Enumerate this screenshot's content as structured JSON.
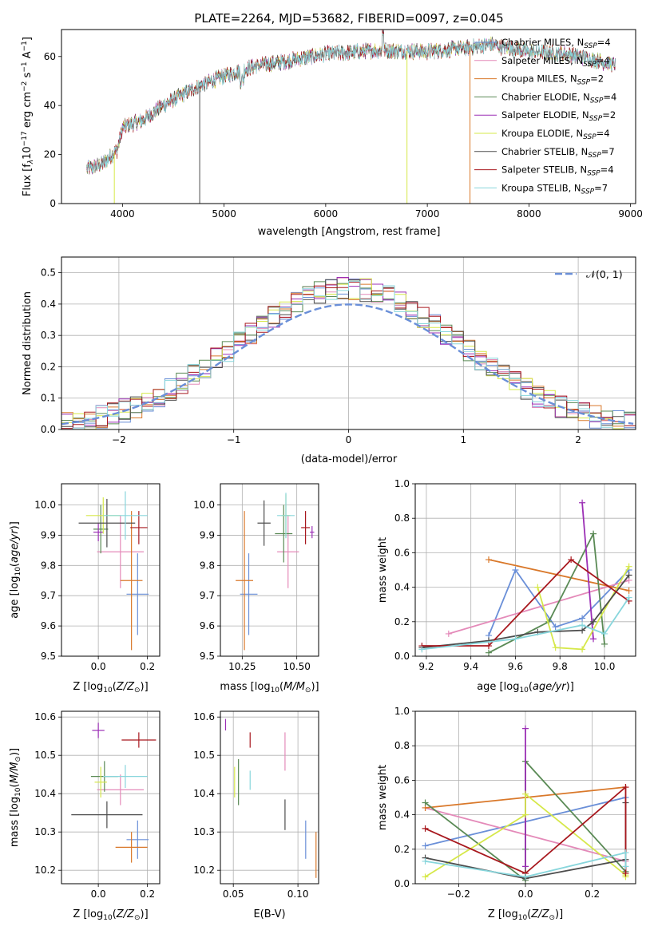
{
  "figure_title": "PLATE=2264, MJD=53682, FIBERID=0097, z=0.045",
  "colors": {
    "Chabrier MILES": "#6a8fd8",
    "Salpeter MILES": "#e48ab9",
    "Kroupa MILES": "#d9782a",
    "Chabrier ELODIE": "#5a8a55",
    "Salpeter ELODIE": "#9b2fb5",
    "Kroupa ELODIE": "#d6e84a",
    "Chabrier STELIB": "#4d4d4d",
    "Salpeter STELIB": "#a8181e",
    "Kroupa STELIB": "#88d6dc"
  },
  "legend_spectrum": [
    {
      "name": "Chabrier MILES",
      "suffix": "4"
    },
    {
      "name": "Salpeter MILES",
      "suffix": "4"
    },
    {
      "name": "Kroupa MILES",
      "suffix": "2"
    },
    {
      "name": "Chabrier ELODIE",
      "suffix": "4"
    },
    {
      "name": "Salpeter ELODIE",
      "suffix": "2"
    },
    {
      "name": "Kroupa ELODIE",
      "suffix": "4"
    },
    {
      "name": "Chabrier STELIB",
      "suffix": "7"
    },
    {
      "name": "Salpeter STELIB",
      "suffix": "4"
    },
    {
      "name": "Kroupa STELIB",
      "suffix": "7"
    }
  ],
  "chart_data": [
    {
      "id": "spectrum",
      "type": "line",
      "xlabel": "wavelength [Angstrom, rest frame]",
      "ylabel": "Flux [f_λ 10^-17 erg cm^-2 s^-1 A^-1]",
      "xlim": [
        3400,
        9050
      ],
      "ylim": [
        0,
        71
      ],
      "xticks": [
        4000,
        5000,
        6000,
        7000,
        8000,
        9000
      ],
      "yticks": [
        0,
        20,
        40,
        60
      ],
      "legend": "upper-right",
      "trend": [
        [
          3650,
          14
        ],
        [
          3800,
          16
        ],
        [
          3950,
          22
        ],
        [
          4000,
          31
        ],
        [
          4200,
          34
        ],
        [
          4400,
          40
        ],
        [
          4700,
          47
        ],
        [
          5000,
          52
        ],
        [
          5300,
          56
        ],
        [
          5600,
          58
        ],
        [
          6000,
          61
        ],
        [
          6500,
          62.5
        ],
        [
          7000,
          62
        ],
        [
          7500,
          64
        ],
        [
          7600,
          65
        ],
        [
          8000,
          62
        ],
        [
          8400,
          61
        ],
        [
          8800,
          57
        ]
      ],
      "spikes": [
        {
          "series": "Kroupa ELODIE",
          "x": 3920,
          "y": 0
        },
        {
          "series": "Chabrier STELIB",
          "x": 4760,
          "y": 0
        },
        {
          "series": "Kroupa ELODIE",
          "x": 6800,
          "y": 0
        },
        {
          "series": "Kroupa MILES",
          "x": 7420,
          "y": 0
        }
      ]
    },
    {
      "id": "residuals",
      "type": "histogram",
      "xlabel": "(data-model)/error",
      "ylabel": "Normed distribution",
      "xlim": [
        -2.5,
        2.5
      ],
      "ylim": [
        0,
        0.55
      ],
      "xticks": [
        -2,
        -1,
        0,
        1,
        2
      ],
      "yticks": [
        0,
        0.1,
        0.2,
        0.3,
        0.4,
        0.5
      ],
      "grid": true,
      "legend": "upper-right",
      "reference_label": "𝒩(0, 1)",
      "bin_width": 0.1
    },
    {
      "id": "age-vs-Z",
      "type": "scatter",
      "xlabel": "Z [log10(Z/Z⊙)]",
      "ylabel": "age [log10(age/yr)]",
      "xlim": [
        -0.15,
        0.25
      ],
      "ylim": [
        9.5,
        10.07
      ],
      "xticks": [
        0.0,
        0.2
      ],
      "yticks": [
        9.5,
        9.6,
        9.7,
        9.8,
        9.9,
        10.0
      ],
      "grid": true,
      "points": [
        {
          "series": "Chabrier MILES",
          "x": 0.16,
          "y": 9.705,
          "xerr": 0.045,
          "yerr": 0.135
        },
        {
          "series": "Salpeter MILES",
          "x": 0.09,
          "y": 9.845,
          "xerr": 0.095,
          "yerr": 0.12
        },
        {
          "series": "Kroupa MILES",
          "x": 0.135,
          "y": 9.75,
          "xerr": 0.045,
          "yerr": 0.23
        },
        {
          "series": "Chabrier ELODIE",
          "x": 0.01,
          "y": 9.92,
          "xerr": 0.03,
          "yerr": 0.08
        },
        {
          "series": "Salpeter ELODIE",
          "x": 0.0,
          "y": 9.91,
          "xerr": 0.02,
          "yerr": 0.03
        },
        {
          "series": "Kroupa ELODIE",
          "x": 0.02,
          "y": 9.965,
          "xerr": 0.07,
          "yerr": 0.06
        },
        {
          "series": "Chabrier STELIB",
          "x": 0.035,
          "y": 9.94,
          "xerr": 0.115,
          "yerr": 0.08
        },
        {
          "series": "Salpeter STELIB",
          "x": 0.165,
          "y": 9.925,
          "xerr": 0.035,
          "yerr": 0.055
        },
        {
          "series": "Kroupa STELIB",
          "x": 0.11,
          "y": 9.965,
          "xerr": 0.09,
          "yerr": 0.08
        }
      ]
    },
    {
      "id": "age-vs-mass",
      "type": "scatter",
      "xlabel": "mass [log10(M/M⊙)]",
      "xlim": [
        10.15,
        10.6
      ],
      "ylim": [
        9.5,
        10.07
      ],
      "xticks": [
        10.25,
        10.5
      ],
      "yticks": [
        9.5,
        9.6,
        9.7,
        9.8,
        9.9,
        10.0
      ],
      "grid": true,
      "points": [
        {
          "series": "Chabrier MILES",
          "x": 10.28,
          "y": 9.705,
          "xerr": 0.04,
          "yerr": 0.135
        },
        {
          "series": "Salpeter MILES",
          "x": 10.46,
          "y": 9.845,
          "xerr": 0.05,
          "yerr": 0.12
        },
        {
          "series": "Kroupa MILES",
          "x": 10.26,
          "y": 9.75,
          "xerr": 0.04,
          "yerr": 0.23
        },
        {
          "series": "Chabrier ELODIE",
          "x": 10.44,
          "y": 9.905,
          "xerr": 0.04,
          "yerr": 0.095
        },
        {
          "series": "Salpeter ELODIE",
          "x": 10.57,
          "y": 9.91,
          "xerr": 0.01,
          "yerr": 0.02
        },
        {
          "series": "Kroupa ELODIE",
          "x": 10.45,
          "y": 9.965,
          "xerr": 0.02,
          "yerr": 0.07
        },
        {
          "series": "Chabrier STELIB",
          "x": 10.35,
          "y": 9.94,
          "xerr": 0.03,
          "yerr": 0.075
        },
        {
          "series": "Salpeter STELIB",
          "x": 10.54,
          "y": 9.925,
          "xerr": 0.02,
          "yerr": 0.055
        },
        {
          "series": "Kroupa STELIB",
          "x": 10.45,
          "y": 9.965,
          "xerr": 0.04,
          "yerr": 0.075
        }
      ]
    },
    {
      "id": "weight-vs-age",
      "type": "line",
      "xlabel": "age [log10(age/yr)]",
      "ylabel": "mass weight",
      "xlim": [
        9.15,
        10.14
      ],
      "ylim": [
        0,
        1
      ],
      "xticks": [
        9.2,
        9.4,
        9.6,
        9.8,
        10.0
      ],
      "yticks": [
        0,
        0.2,
        0.4,
        0.6,
        0.8,
        1.0
      ],
      "grid": true,
      "series": [
        {
          "name": "Chabrier MILES",
          "x": [
            9.48,
            9.6,
            9.78,
            9.9,
            10.11
          ],
          "y": [
            0.12,
            0.5,
            0.17,
            0.22,
            0.5
          ]
        },
        {
          "name": "Salpeter MILES",
          "x": [
            9.3,
            10.11
          ],
          "y": [
            0.13,
            0.44
          ]
        },
        {
          "name": "Kroupa MILES",
          "x": [
            9.48,
            10.11
          ],
          "y": [
            0.56,
            0.38
          ]
        },
        {
          "name": "Chabrier ELODIE",
          "x": [
            9.48,
            9.75,
            9.95,
            10.0
          ],
          "y": [
            0.02,
            0.2,
            0.71,
            0.07
          ]
        },
        {
          "name": "Salpeter ELODIE",
          "x": [
            9.9,
            9.95
          ],
          "y": [
            0.89,
            0.1
          ]
        },
        {
          "name": "Kroupa ELODIE",
          "x": [
            9.7,
            9.78,
            9.9,
            10.11
          ],
          "y": [
            0.4,
            0.05,
            0.04,
            0.52
          ]
        },
        {
          "name": "Chabrier STELIB",
          "x": [
            9.18,
            9.48,
            9.7,
            9.9,
            9.95,
            10.11
          ],
          "y": [
            0.05,
            0.09,
            0.14,
            0.15,
            0.2,
            0.47
          ]
        },
        {
          "name": "Salpeter STELIB",
          "x": [
            9.18,
            9.48,
            9.85,
            10.11
          ],
          "y": [
            0.06,
            0.06,
            0.56,
            0.32
          ]
        },
        {
          "name": "Kroupa STELIB",
          "x": [
            9.18,
            9.6,
            9.9,
            10.0,
            10.11
          ],
          "y": [
            0.04,
            0.1,
            0.18,
            0.13,
            0.34
          ]
        }
      ]
    },
    {
      "id": "mass-vs-Z",
      "type": "scatter",
      "xlabel": "Z [log10(Z/Z⊙)]",
      "ylabel": "mass [log10(M/M⊙)]",
      "xlim": [
        -0.15,
        0.25
      ],
      "ylim": [
        10.165,
        10.615
      ],
      "xticks": [
        0.0,
        0.2
      ],
      "yticks": [
        10.2,
        10.3,
        10.4,
        10.5,
        10.6
      ],
      "grid": true,
      "points": [
        {
          "series": "Chabrier MILES",
          "x": 0.16,
          "y": 10.28,
          "xerr": 0.045,
          "yerr": 0.05
        },
        {
          "series": "Salpeter MILES",
          "x": 0.09,
          "y": 10.41,
          "xerr": 0.095,
          "yerr": 0.04
        },
        {
          "series": "Kroupa MILES",
          "x": 0.135,
          "y": 10.26,
          "xerr": 0.065,
          "yerr": 0.04
        },
        {
          "series": "Chabrier ELODIE",
          "x": 0.025,
          "y": 10.445,
          "xerr": 0.055,
          "yerr": 0.04
        },
        {
          "series": "Salpeter ELODIE",
          "x": 0.0,
          "y": 10.565,
          "xerr": 0.025,
          "yerr": 0.02
        },
        {
          "series": "Kroupa ELODIE",
          "x": 0.01,
          "y": 10.43,
          "xerr": 0.025,
          "yerr": 0.04
        },
        {
          "series": "Chabrier STELIB",
          "x": 0.035,
          "y": 10.345,
          "xerr": 0.145,
          "yerr": 0.035
        },
        {
          "series": "Salpeter STELIB",
          "x": 0.165,
          "y": 10.54,
          "xerr": 0.07,
          "yerr": 0.02
        },
        {
          "series": "Kroupa STELIB",
          "x": 0.11,
          "y": 10.445,
          "xerr": 0.09,
          "yerr": 0.03
        }
      ]
    },
    {
      "id": "mass-vs-ebv",
      "type": "scatter",
      "xlabel": "E(B-V)",
      "xlim": [
        0.04,
        0.116
      ],
      "ylim": [
        10.165,
        10.615
      ],
      "xticks": [
        0.05,
        0.1
      ],
      "yticks": [
        10.2,
        10.3,
        10.4,
        10.5,
        10.6
      ],
      "grid": true,
      "points": [
        {
          "series": "Chabrier MILES",
          "x": 0.106,
          "y": 10.28,
          "xerr": 0,
          "yerr": 0.05
        },
        {
          "series": "Salpeter MILES",
          "x": 0.09,
          "y": 10.51,
          "xerr": 0,
          "yerr": 0.05
        },
        {
          "series": "Kroupa MILES",
          "x": 0.114,
          "y": 10.24,
          "xerr": 0,
          "yerr": 0.06
        },
        {
          "series": "Chabrier ELODIE",
          "x": 0.054,
          "y": 10.43,
          "xerr": 0,
          "yerr": 0.06
        },
        {
          "series": "Salpeter ELODIE",
          "x": 0.044,
          "y": 10.58,
          "xerr": 0,
          "yerr": 0.015
        },
        {
          "series": "Kroupa ELODIE",
          "x": 0.051,
          "y": 10.43,
          "xerr": 0,
          "yerr": 0.04
        },
        {
          "series": "Chabrier STELIB",
          "x": 0.09,
          "y": 10.345,
          "xerr": 0,
          "yerr": 0.04
        },
        {
          "series": "Salpeter STELIB",
          "x": 0.063,
          "y": 10.54,
          "xerr": 0,
          "yerr": 0.02
        },
        {
          "series": "Kroupa STELIB",
          "x": 0.063,
          "y": 10.435,
          "xerr": 0,
          "yerr": 0.025
        }
      ]
    },
    {
      "id": "weight-vs-Z",
      "type": "line",
      "xlabel": "Z [log10(Z/Z⊙)]",
      "ylabel": "mass weight",
      "xlim": [
        -0.33,
        0.33
      ],
      "ylim": [
        0,
        1
      ],
      "xticks": [
        -0.2,
        0.0,
        0.2
      ],
      "yticks": [
        0,
        0.2,
        0.4,
        0.6,
        0.8,
        1.0
      ],
      "grid": true,
      "series": [
        {
          "name": "Chabrier MILES",
          "x": [
            -0.3,
            0.3
          ],
          "y": [
            0.22,
            0.5
          ]
        },
        {
          "name": "Salpeter MILES",
          "x": [
            -0.3,
            0.3
          ],
          "y": [
            0.44,
            0.13
          ]
        },
        {
          "name": "Kroupa MILES",
          "x": [
            -0.3,
            0.0,
            0.3
          ],
          "y": [
            0.44,
            0.5,
            0.56
          ]
        },
        {
          "name": "Chabrier ELODIE",
          "x": [
            -0.3,
            0.0,
            0.0,
            0.0,
            0.3
          ],
          "y": [
            0.47,
            0.02,
            0.2,
            0.71,
            0.07
          ]
        },
        {
          "name": "Salpeter ELODIE",
          "x": [
            0.0,
            0.0
          ],
          "y": [
            0.1,
            0.9
          ]
        },
        {
          "name": "Kroupa ELODIE",
          "x": [
            -0.3,
            0.0,
            0.0,
            0.3,
            0.3
          ],
          "y": [
            0.04,
            0.4,
            0.52,
            0.05,
            0.04
          ]
        },
        {
          "name": "Chabrier STELIB",
          "x": [
            -0.3,
            0.0,
            0.3,
            0.3
          ],
          "y": [
            0.15,
            0.03,
            0.14,
            0.47
          ]
        },
        {
          "name": "Salpeter STELIB",
          "x": [
            -0.3,
            0.0,
            0.3,
            0.3
          ],
          "y": [
            0.32,
            0.06,
            0.56,
            0.06
          ]
        },
        {
          "name": "Kroupa STELIB",
          "x": [
            -0.3,
            0.0,
            0.3,
            0.3
          ],
          "y": [
            0.13,
            0.04,
            0.18,
            0.1
          ]
        }
      ]
    }
  ]
}
